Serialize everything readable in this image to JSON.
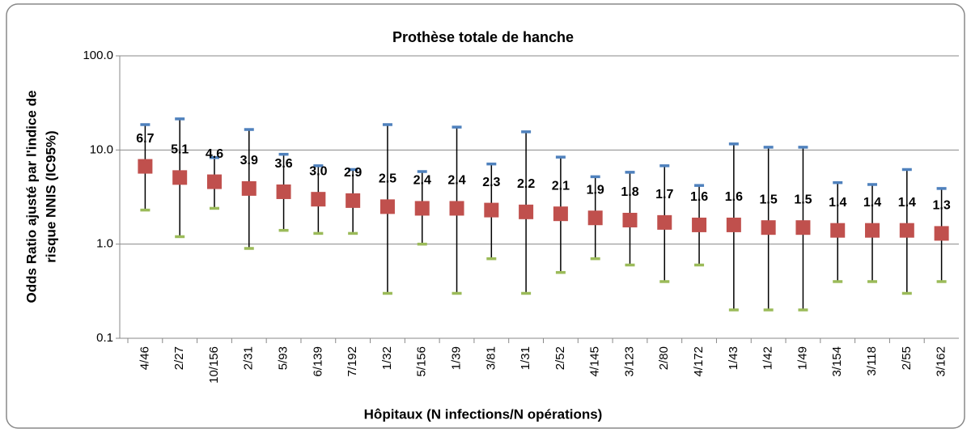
{
  "chart_data": {
    "type": "errorbar",
    "title": "Prothèse totale de hanche",
    "ylabel": [
      "Odds Ratio ajusté par l'indice de",
      "risque NNIS (IC95%)"
    ],
    "xlabel": "Hôpitaux (N infections/N opérations)",
    "categories": [
      "4/46",
      "2/27",
      "10/156",
      "2/31",
      "5/93",
      "6/139",
      "7/192",
      "1/32",
      "5/156",
      "1/39",
      "3/81",
      "1/31",
      "2/52",
      "4/145",
      "3/123",
      "2/80",
      "4/172",
      "1/43",
      "1/42",
      "1/49",
      "3/154",
      "3/118",
      "2/55",
      "3/162"
    ],
    "values": [
      6.7,
      5.1,
      4.6,
      3.9,
      3.6,
      3.0,
      2.9,
      2.5,
      2.4,
      2.4,
      2.3,
      2.2,
      2.1,
      1.9,
      1.8,
      1.7,
      1.6,
      1.6,
      1.5,
      1.5,
      1.4,
      1.4,
      1.4,
      1.3
    ],
    "value_labels": [
      "6.7",
      "5.1",
      "4.6",
      "3.9",
      "3.6",
      "3.0",
      "2.9",
      "2.5",
      "2.4",
      "2.4",
      "2.3",
      "2.2",
      "2.1",
      "1.9",
      "1.8",
      "1.7",
      "1.6",
      "1.6",
      "1.5",
      "1.5",
      "1.4",
      "1.4",
      "1.4",
      "1.3"
    ],
    "upper": [
      18.6,
      21.4,
      8.3,
      16.5,
      9.0,
      6.8,
      6.2,
      18.6,
      5.9,
      17.5,
      7.1,
      15.6,
      8.4,
      5.2,
      5.8,
      6.8,
      4.2,
      11.6,
      10.7,
      10.7,
      4.5,
      4.3,
      6.2,
      3.9
    ],
    "lower": [
      2.3,
      1.2,
      2.4,
      0.9,
      1.4,
      1.3,
      1.3,
      0.3,
      1.0,
      0.3,
      0.7,
      0.3,
      0.5,
      0.7,
      0.6,
      0.4,
      0.6,
      0.2,
      0.2,
      0.2,
      0.4,
      0.4,
      0.3,
      0.4
    ],
    "color": "#c0504d",
    "upper_color": "#4f81bd",
    "lower_color": "#9bbb59",
    "log_y": true,
    "grid": true,
    "ylim": [
      0.1,
      100
    ],
    "yticks": [
      0.1,
      {
        "value": 1,
        "label": "1.0"
      },
      {
        "value": 10,
        "label": "10.0"
      },
      {
        "value": 100,
        "label": "100.0"
      }
    ]
  }
}
